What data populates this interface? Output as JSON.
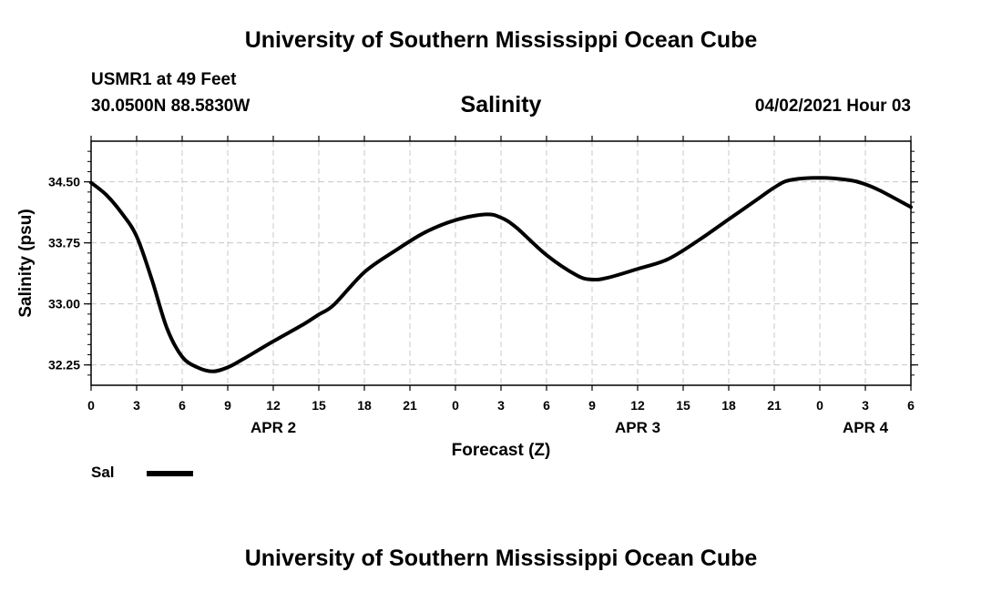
{
  "header": {
    "org_title": "University of Southern Mississippi Ocean Cube",
    "station": "USMR1 at 49 Feet",
    "coords": "30.0500N  88.5830W",
    "datetime": "04/02/2021 Hour 03"
  },
  "footer": {
    "org_title": "University of Southern Mississippi Ocean Cube"
  },
  "legend": {
    "label": "Sal",
    "color": "#000000"
  },
  "chart_data": {
    "type": "line",
    "title": "Salinity",
    "xlabel": "Forecast (Z)",
    "ylabel": "Salinity (psu)",
    "xlim": [
      0,
      54
    ],
    "ylim": [
      32.0,
      35.0
    ],
    "x_ticks": [
      0,
      3,
      6,
      9,
      12,
      15,
      18,
      21,
      24,
      27,
      30,
      33,
      36,
      39,
      42,
      45,
      48,
      51,
      54
    ],
    "x_tick_labels": [
      "0",
      "3",
      "6",
      "9",
      "12",
      "15",
      "18",
      "21",
      "0",
      "3",
      "6",
      "9",
      "12",
      "15",
      "18",
      "21",
      "0",
      "3",
      "6"
    ],
    "y_ticks": [
      32.25,
      33.0,
      33.75,
      34.5
    ],
    "y_tick_labels": [
      "32.25",
      "33.00",
      "33.75",
      "34.50"
    ],
    "date_labels": [
      {
        "x": 12,
        "label": "APR 2"
      },
      {
        "x": 36,
        "label": "APR 3"
      },
      {
        "x": 51,
        "label": "APR 4"
      }
    ],
    "grid": true,
    "series": [
      {
        "name": "Sal",
        "color": "#000000",
        "x": [
          0,
          1,
          2,
          3,
          4,
          5,
          6,
          7,
          8,
          9,
          10,
          12,
          14,
          15,
          16,
          18,
          20,
          22,
          24,
          26,
          27,
          28,
          30,
          32,
          33,
          34,
          36,
          38,
          40,
          42,
          44,
          45,
          46,
          48,
          50,
          51,
          52,
          54
        ],
        "values": [
          34.49,
          34.34,
          34.12,
          33.83,
          33.3,
          32.7,
          32.35,
          32.22,
          32.17,
          32.22,
          32.32,
          32.54,
          32.75,
          32.87,
          32.99,
          33.39,
          33.65,
          33.88,
          34.03,
          34.1,
          34.06,
          33.94,
          33.6,
          33.35,
          33.3,
          33.32,
          33.43,
          33.55,
          33.78,
          34.04,
          34.3,
          34.43,
          34.52,
          34.55,
          34.52,
          34.47,
          34.39,
          34.19
        ]
      }
    ]
  }
}
